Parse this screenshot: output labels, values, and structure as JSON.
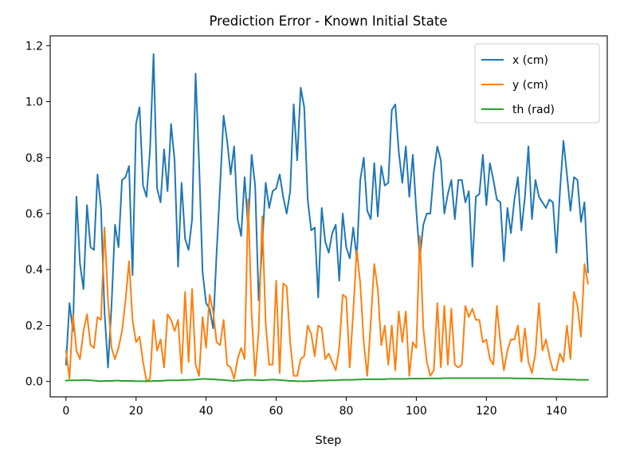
{
  "chart_data": {
    "type": "line",
    "title": "Prediction Error - Known Initial State",
    "xlabel": "Step",
    "ylabel": "",
    "xlim": [
      -4.5,
      154.5
    ],
    "ylim": [
      -0.055,
      1.235
    ],
    "xticks": [
      0,
      20,
      40,
      60,
      80,
      100,
      120,
      140
    ],
    "yticks": [
      0.0,
      0.2,
      0.4,
      0.6,
      0.8,
      1.0,
      1.2
    ],
    "xtick_labels": [
      "0",
      "20",
      "40",
      "60",
      "80",
      "100",
      "120",
      "140"
    ],
    "ytick_labels": [
      "0.0",
      "0.2",
      "0.4",
      "0.6",
      "0.8",
      "1.0",
      "1.2"
    ],
    "grid": false,
    "legend_position": "top-right",
    "series": [
      {
        "name": "x (cm)",
        "color": "#1f77b4",
        "values": [
          0.06,
          0.28,
          0.18,
          0.66,
          0.42,
          0.33,
          0.63,
          0.48,
          0.47,
          0.74,
          0.62,
          0.25,
          0.05,
          0.27,
          0.56,
          0.48,
          0.72,
          0.73,
          0.77,
          0.38,
          0.92,
          0.98,
          0.7,
          0.66,
          0.83,
          1.17,
          0.69,
          0.64,
          0.83,
          0.68,
          0.92,
          0.79,
          0.41,
          0.71,
          0.51,
          0.47,
          0.58,
          1.1,
          0.78,
          0.39,
          0.28,
          0.26,
          0.19,
          0.46,
          0.7,
          0.95,
          0.86,
          0.74,
          0.84,
          0.58,
          0.52,
          0.73,
          0.55,
          0.81,
          0.7,
          0.29,
          0.48,
          0.71,
          0.62,
          0.68,
          0.69,
          0.74,
          0.66,
          0.6,
          0.68,
          0.99,
          0.79,
          1.05,
          0.98,
          0.65,
          0.54,
          0.55,
          0.3,
          0.62,
          0.5,
          0.46,
          0.53,
          0.56,
          0.36,
          0.6,
          0.48,
          0.44,
          0.55,
          0.44,
          0.72,
          0.8,
          0.61,
          0.58,
          0.78,
          0.59,
          0.77,
          0.7,
          0.71,
          0.97,
          0.99,
          0.82,
          0.71,
          0.84,
          0.66,
          0.81,
          0.61,
          0.44,
          0.56,
          0.6,
          0.6,
          0.75,
          0.84,
          0.79,
          0.6,
          0.67,
          0.72,
          0.58,
          0.72,
          0.72,
          0.64,
          0.68,
          0.41,
          0.66,
          0.67,
          0.81,
          0.63,
          0.78,
          0.72,
          0.65,
          0.64,
          0.43,
          0.62,
          0.53,
          0.65,
          0.73,
          0.54,
          0.66,
          0.84,
          0.58,
          0.72,
          0.66,
          0.64,
          0.62,
          0.65,
          0.64,
          0.46,
          0.68,
          0.86,
          0.74,
          0.61,
          0.73,
          0.72,
          0.57,
          0.64,
          0.39
        ]
      },
      {
        "name": "y (cm)",
        "color": "#ff7f0e",
        "values": [
          0.11,
          0.01,
          0.24,
          0.11,
          0.08,
          0.18,
          0.24,
          0.13,
          0.12,
          0.23,
          0.22,
          0.55,
          0.29,
          0.12,
          0.08,
          0.12,
          0.18,
          0.29,
          0.43,
          0.22,
          0.14,
          0.16,
          0.07,
          0.0,
          0.01,
          0.22,
          0.11,
          0.15,
          0.05,
          0.24,
          0.22,
          0.18,
          0.22,
          0.03,
          0.32,
          0.07,
          0.33,
          0.06,
          0.02,
          0.23,
          0.12,
          0.31,
          0.25,
          0.14,
          0.13,
          0.22,
          0.06,
          0.05,
          0.01,
          0.08,
          0.12,
          0.08,
          0.65,
          0.24,
          0.02,
          0.18,
          0.59,
          0.21,
          0.06,
          0.06,
          0.36,
          0.03,
          0.35,
          0.34,
          0.14,
          0.02,
          0.02,
          0.08,
          0.09,
          0.2,
          0.17,
          0.09,
          0.2,
          0.19,
          0.08,
          0.1,
          0.07,
          0.04,
          0.12,
          0.31,
          0.3,
          0.05,
          0.25,
          0.47,
          0.35,
          0.14,
          0.02,
          0.21,
          0.42,
          0.33,
          0.13,
          0.2,
          0.06,
          0.2,
          0.04,
          0.25,
          0.14,
          0.25,
          0.02,
          0.14,
          0.12,
          0.52,
          0.19,
          0.07,
          0.02,
          0.04,
          0.28,
          0.05,
          0.27,
          0.06,
          0.26,
          0.06,
          0.05,
          0.06,
          0.27,
          0.23,
          0.26,
          0.22,
          0.22,
          0.14,
          0.15,
          0.08,
          0.06,
          0.27,
          0.14,
          0.04,
          0.11,
          0.15,
          0.15,
          0.2,
          0.07,
          0.19,
          0.07,
          0.03,
          0.1,
          0.28,
          0.11,
          0.15,
          0.09,
          0.04,
          0.04,
          0.1,
          0.07,
          0.2,
          0.08,
          0.32,
          0.27,
          0.16,
          0.42,
          0.35
        ]
      },
      {
        "name": "th (rad)",
        "color": "#2ca02c",
        "values": [
          0.003,
          0.004,
          0.004,
          0.004,
          0.004,
          0.005,
          0.005,
          0.004,
          0.003,
          0.002,
          0.001,
          0.002,
          0.002,
          0.002,
          0.003,
          0.003,
          0.002,
          0.002,
          0.002,
          0.002,
          0.001,
          0.001,
          0.001,
          0.001,
          0.001,
          0.002,
          0.002,
          0.002,
          0.003,
          0.004,
          0.004,
          0.004,
          0.004,
          0.005,
          0.005,
          0.006,
          0.006,
          0.007,
          0.008,
          0.009,
          0.009,
          0.008,
          0.008,
          0.007,
          0.006,
          0.005,
          0.004,
          0.003,
          0.002,
          0.003,
          0.004,
          0.005,
          0.006,
          0.006,
          0.005,
          0.005,
          0.004,
          0.005,
          0.006,
          0.007,
          0.006,
          0.005,
          0.004,
          0.003,
          0.002,
          0.002,
          0.001,
          0.001,
          0.001,
          0.001,
          0.002,
          0.002,
          0.003,
          0.003,
          0.003,
          0.004,
          0.004,
          0.004,
          0.005,
          0.006,
          0.006,
          0.006,
          0.006,
          0.007,
          0.007,
          0.008,
          0.008,
          0.008,
          0.008,
          0.008,
          0.008,
          0.008,
          0.009,
          0.009,
          0.009,
          0.009,
          0.009,
          0.009,
          0.01,
          0.01,
          0.01,
          0.01,
          0.01,
          0.01,
          0.011,
          0.011,
          0.011,
          0.011,
          0.012,
          0.012,
          0.012,
          0.012,
          0.012,
          0.012,
          0.012,
          0.012,
          0.012,
          0.012,
          0.012,
          0.012,
          0.012,
          0.012,
          0.012,
          0.012,
          0.012,
          0.012,
          0.012,
          0.012,
          0.011,
          0.011,
          0.011,
          0.011,
          0.011,
          0.01,
          0.01,
          0.01,
          0.01,
          0.009,
          0.009,
          0.009,
          0.008,
          0.008,
          0.008,
          0.007,
          0.007,
          0.007,
          0.006,
          0.006,
          0.006,
          0.006
        ]
      }
    ]
  }
}
